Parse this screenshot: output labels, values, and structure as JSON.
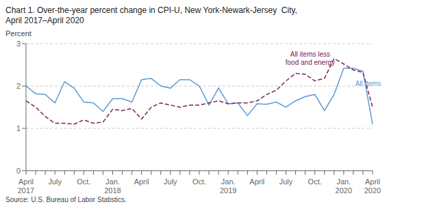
{
  "chart_data": {
    "type": "line",
    "title": "Chart 1. Over-the-year percent change in CPI-U, New York-Newark-Jersey  City,",
    "subtitle": "April 2017–April 2020",
    "ylabel": "Percent",
    "source": "Source: U.S. Bureau of Labor Statistics.",
    "categories": [
      "April\n2017",
      null,
      null,
      "July",
      null,
      null,
      "Oct.",
      null,
      null,
      "Jan.\n2018",
      null,
      null,
      "April",
      null,
      null,
      "July",
      null,
      null,
      "Oct.",
      null,
      null,
      "Jan.\n2019",
      null,
      null,
      "April",
      null,
      null,
      "July",
      null,
      null,
      "Oct.",
      null,
      null,
      "Jan.\n2020",
      null,
      null,
      "April\n2020"
    ],
    "series": [
      {
        "name": "All items",
        "color": "#5B9BD5",
        "line_style": "solid",
        "values": [
          2.0,
          1.82,
          1.8,
          1.6,
          2.1,
          1.95,
          1.62,
          1.6,
          1.4,
          1.7,
          1.7,
          1.62,
          2.15,
          2.18,
          2.0,
          1.95,
          2.15,
          2.15,
          2.0,
          1.55,
          1.95,
          1.58,
          1.6,
          1.3,
          1.58,
          1.57,
          1.62,
          1.5,
          1.65,
          1.75,
          1.8,
          1.42,
          1.8,
          2.42,
          2.42,
          2.35,
          1.1
        ]
      },
      {
        "name": "All items less\nfood and energy",
        "color": "#7B2252",
        "line_style": "dashed",
        "values": [
          1.65,
          1.5,
          1.28,
          1.12,
          1.12,
          1.1,
          1.2,
          1.12,
          1.15,
          1.45,
          1.42,
          1.47,
          1.22,
          1.5,
          1.6,
          1.55,
          1.5,
          1.55,
          1.55,
          1.6,
          1.65,
          1.58,
          1.6,
          1.6,
          1.65,
          1.8,
          1.9,
          2.12,
          2.3,
          2.28,
          2.12,
          2.18,
          2.65,
          2.52,
          2.38,
          2.32,
          1.5
        ]
      }
    ],
    "ylim": [
      0,
      3
    ],
    "yticks": [
      0,
      1,
      2,
      3
    ],
    "grid": true
  }
}
